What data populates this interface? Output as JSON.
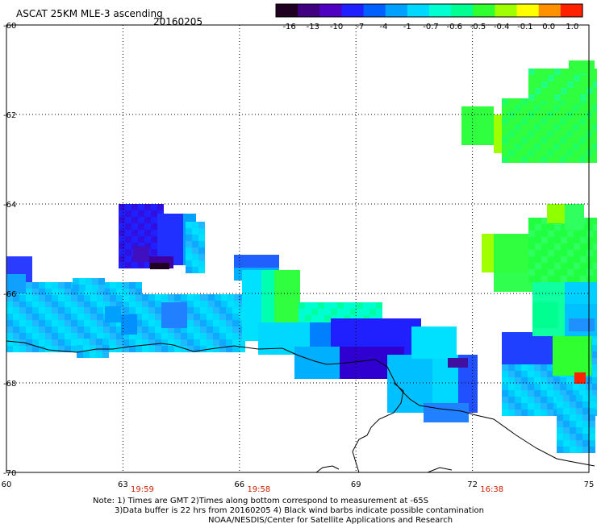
{
  "header": {
    "title": "ASCAT 25KM MLE-3 ascending",
    "date": "20160205"
  },
  "colorbar": {
    "labels": [
      "-16",
      "-13",
      "-10",
      "-7",
      "-4",
      "-1",
      "-0.7",
      "-0.6",
      "-0.5",
      "-0.4",
      "-0.1",
      "0.0",
      "1.0"
    ],
    "colors": [
      "#200020",
      "#400080",
      "#5000c0",
      "#2020ff",
      "#0060ff",
      "#00a0ff",
      "#00d8ff",
      "#00ffd0",
      "#00ff90",
      "#30ff30",
      "#a0ff00",
      "#ffff00",
      "#ff9000",
      "#ff2000"
    ]
  },
  "map": {
    "lon_min": 60,
    "lon_max": 75,
    "lat_min": -70,
    "lat_max": -60,
    "lon_ticks": [
      "60",
      "63",
      "66",
      "69",
      "72",
      "75"
    ],
    "lat_ticks": [
      "-60",
      "-62",
      "-64",
      "-66",
      "-68",
      "-70"
    ],
    "pass_times": [
      {
        "lon": 63.5,
        "text": "19:59"
      },
      {
        "lon": 66.5,
        "text": "19:58"
      },
      {
        "lon": 72.5,
        "text": "16:38"
      }
    ]
  },
  "notes": {
    "line1": "Note: 1) Times are GMT 2)Times along bottom correspond to measurement at -65S",
    "line2": "3)Data buffer is 22 hrs from 20160205 4) Black wind barbs indicate possible contamination",
    "line3": "NOAA/NESDIS/Center for Satellite Applications and Research"
  }
}
